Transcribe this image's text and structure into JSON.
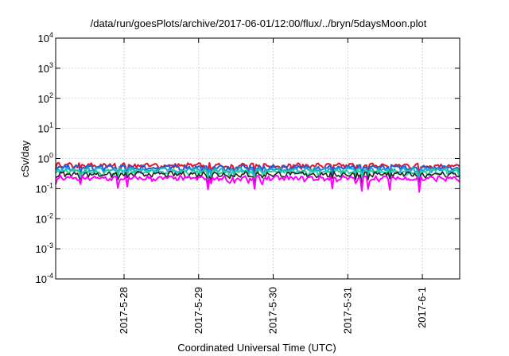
{
  "chart_data": {
    "type": "line",
    "title": "/data/run/goesPlots/archive/2017-06-01/12:00/flux/../bryn/5daysMoon.plot",
    "xlabel": "Coordinated Universal Time (UTC)",
    "ylabel": "cSv/day",
    "yscale": "log",
    "ylim": [
      0.0001,
      10000
    ],
    "y_ticks": [
      {
        "base": "10",
        "exp": "4",
        "value": 10000
      },
      {
        "base": "10",
        "exp": "3",
        "value": 1000
      },
      {
        "base": "10",
        "exp": "2",
        "value": 100
      },
      {
        "base": "10",
        "exp": "1",
        "value": 10
      },
      {
        "base": "10",
        "exp": "0",
        "value": 1
      },
      {
        "base": "10",
        "exp": "-1",
        "value": 0.1
      },
      {
        "base": "10",
        "exp": "-2",
        "value": 0.01
      },
      {
        "base": "10",
        "exp": "-3",
        "value": 0.001
      },
      {
        "base": "10",
        "exp": "-4",
        "value": 0.0001
      }
    ],
    "xlim": [
      "2017-05-27T02:00",
      "2017-06-01T12:00"
    ],
    "x_ticks": [
      {
        "label": "2017-5-28",
        "value": "2017-05-28T00:00"
      },
      {
        "label": "2017-5-29",
        "value": "2017-05-29T00:00"
      },
      {
        "label": "2017-5-30",
        "value": "2017-05-30T00:00"
      },
      {
        "label": "2017-5-31",
        "value": "2017-05-31T00:00"
      },
      {
        "label": "2017-6-1",
        "value": "2017-06-01T00:00"
      }
    ],
    "grid": true,
    "legend": "none",
    "series": [
      {
        "color": "#e0142c",
        "base": 0.58
      },
      {
        "color": "#1f5fd6",
        "base": 0.5
      },
      {
        "color": "#19a9d6",
        "base": 0.42
      },
      {
        "color": "#2bd09a",
        "base": 0.36
      },
      {
        "color": "#222222",
        "base": 0.3
      },
      {
        "color": "#ff00ff",
        "base": 0.22
      }
    ]
  }
}
